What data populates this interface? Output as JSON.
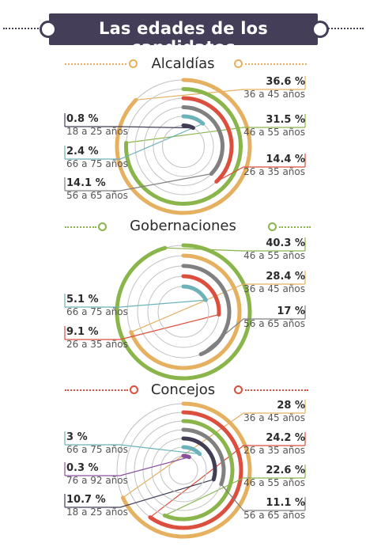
{
  "title": "Las edades de los candidatos",
  "colors": {
    "banner": "#453e58",
    "orange": "#e6b061",
    "green": "#8ab54b",
    "red": "#dc4e3d",
    "gray": "#808080",
    "teal": "#6cb2b9",
    "darkpurple": "#433c55",
    "purple": "#8a4f9c",
    "ring": "#c2c2c2"
  },
  "chart_data": [
    {
      "type": "radial-bar",
      "title": "Alcaldías",
      "series": [
        {
          "range": "36 a 45 años",
          "value": 36.6,
          "label": "36.6 %",
          "color": "orange"
        },
        {
          "range": "46 a 55 años",
          "value": 31.5,
          "label": "31.5 %",
          "color": "green"
        },
        {
          "range": "26 a 35 años",
          "value": 14.4,
          "label": "14.4 %",
          "color": "red"
        },
        {
          "range": "56 a 65 años",
          "value": 14.1,
          "label": "14.1 %",
          "color": "gray"
        },
        {
          "range": "66 a 75 años",
          "value": 2.4,
          "label": "2.4 %",
          "color": "teal"
        },
        {
          "range": "18 a 25 años",
          "value": 0.8,
          "label": "0.8 %",
          "color": "darkpurple"
        }
      ]
    },
    {
      "type": "radial-bar",
      "title": "Gobernaciones",
      "series": [
        {
          "range": "46 a 55 años",
          "value": 40.3,
          "label": "40.3 %",
          "color": "green"
        },
        {
          "range": "36 a 45 años",
          "value": 28.4,
          "label": "28.4 %",
          "color": "orange"
        },
        {
          "range": "56 a 65 años",
          "value": 17,
          "label": "17 %",
          "color": "gray"
        },
        {
          "range": "26 a 35 años",
          "value": 9.1,
          "label": "9.1 %",
          "color": "red"
        },
        {
          "range": "66 a 75 años",
          "value": 5.1,
          "label": "5.1 %",
          "color": "teal"
        }
      ]
    },
    {
      "type": "radial-bar",
      "title": "Concejos",
      "series": [
        {
          "range": "36 a 45 años",
          "value": 28,
          "label": "28 %",
          "color": "orange"
        },
        {
          "range": "26 a 35 años",
          "value": 24.2,
          "label": "24.2 %",
          "color": "red"
        },
        {
          "range": "46 a 55 años",
          "value": 22.6,
          "label": "22.6 %",
          "color": "green"
        },
        {
          "range": "56 a 65 años",
          "value": 11.1,
          "label": "11.1 %",
          "color": "gray"
        },
        {
          "range": "18 a 25 años",
          "value": 10.7,
          "label": "10.7 %",
          "color": "darkpurple"
        },
        {
          "range": "66 a 75 años",
          "value": 3,
          "label": "3 %",
          "color": "teal"
        },
        {
          "range": "76 a 92 años",
          "value": 0.3,
          "label": "0.3 %",
          "color": "purple"
        }
      ]
    }
  ]
}
